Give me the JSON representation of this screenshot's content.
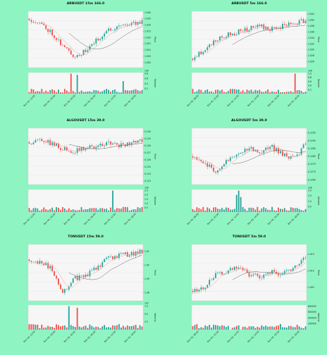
{
  "colors": {
    "up": "#26a69a",
    "down": "#ef5350",
    "ma_fast": "#e8a0a0",
    "ma_slow": "#555555",
    "panel": "#f6f6f6",
    "background": "#8ef5c2"
  },
  "chart_data": [
    {
      "id": "arbusdt-15m",
      "type": "candlestick",
      "title": "ARBUSDT 15m 166.0",
      "ylabel": "Price",
      "vlabel": "Volume",
      "vol_scale_label": "1e6",
      "ylim": [
        0.996,
        1.041
      ],
      "y_ticks": [
        "1.040",
        "1.035",
        "1.030",
        "1.025",
        "1.020",
        "1.015",
        "1.010",
        "1.005",
        "1.000"
      ],
      "vol_ticks": [
        "0.8",
        "0.6",
        "0.4",
        "0.2"
      ],
      "x_ticks": [
        "Nov 04, 12:00",
        "Nov 04, 18:00",
        "Nov 05, 00:00",
        "Nov 05, 06:00",
        "Nov 05, 12:00",
        "Nov 05, 18:00"
      ],
      "path": [
        1.035,
        1.031,
        1.024,
        1.013,
        1.005,
        1.009,
        1.018,
        1.026,
        1.03,
        1.031,
        1.033
      ],
      "n": 55,
      "vol_spikes": [
        [
          20,
          0.9
        ],
        [
          23,
          0.75
        ],
        [
          45,
          0.5
        ]
      ],
      "seed": 11
    },
    {
      "id": "arbusdt-5m",
      "type": "candlestick",
      "title": "ARBUSDT 5m 166.0",
      "ylabel": "Price",
      "vlabel": "Volume",
      "vol_scale_label": "1e6",
      "ylim": [
        1.024,
        1.043
      ],
      "y_ticks": [
        "1.042",
        "1.040",
        "1.038",
        "1.036",
        "1.034",
        "1.032",
        "1.030",
        "1.028",
        "1.026"
      ],
      "vol_ticks": [
        "1.0",
        "0.8",
        "0.6",
        "0.4",
        "0.2"
      ],
      "x_ticks": [
        "Nov 05, 08:00",
        "Nov 05, 10:00",
        "Nov 05, 12:00",
        "Nov 05, 14:00",
        "Nov 05, 16:00",
        "Nov 05, 18:00"
      ],
      "path": [
        1.027,
        1.03,
        1.033,
        1.035,
        1.036,
        1.037,
        1.038,
        1.037,
        1.038,
        1.039,
        1.04
      ],
      "n": 55,
      "vol_spikes": [
        [
          49,
          1.0
        ]
      ],
      "seed": 23
    },
    {
      "id": "algousdt-15m",
      "type": "candlestick",
      "title": "ALGOUSDT 15m 39.0",
      "ylabel": "Price",
      "vlabel": "Volume",
      "vol_scale_label": "1e6",
      "ylim": [
        0.1225,
        0.1305
      ],
      "y_ticks": [
        "0.130",
        "0.129",
        "0.128",
        "0.127",
        "0.126",
        "0.125",
        "0.124",
        "0.123"
      ],
      "vol_ticks": [
        "2.5",
        "2.0",
        "1.5",
        "1.0",
        "0.5"
      ],
      "x_ticks": [
        "Nov 04, 12:00",
        "Nov 04, 18:00",
        "Nov 05, 00:00",
        "Nov 05, 06:00",
        "Nov 05, 12:00",
        "Nov 05, 18:00"
      ],
      "path": [
        0.1285,
        0.1288,
        0.1283,
        0.1275,
        0.1272,
        0.1277,
        0.128,
        0.1283,
        0.1281,
        0.1284,
        0.1286
      ],
      "n": 55,
      "vol_spikes": [
        [
          40,
          2.6
        ]
      ],
      "seed": 37
    },
    {
      "id": "algousdt-5m",
      "type": "candlestick",
      "title": "ALGOUSDT 5m 39.0",
      "ylabel": "Price",
      "vlabel": "Volume",
      "vol_scale_label": "1e6",
      "ylim": [
        0.1262,
        0.1298
      ],
      "y_ticks": [
        "0.1295",
        "0.1290",
        "0.1285",
        "0.1280",
        "0.1275",
        "0.1270",
        "0.1265"
      ],
      "vol_ticks": [
        "2.0",
        "1.5",
        "1.0",
        "0.5"
      ],
      "x_ticks": [
        "Nov 05, 08:00",
        "Nov 05, 10:00",
        "Nov 05, 12:00",
        "Nov 05, 14:00",
        "Nov 05, 16:00",
        "Nov 05, 18:00"
      ],
      "path": [
        0.128,
        0.1276,
        0.127,
        0.1278,
        0.1282,
        0.1285,
        0.1283,
        0.1286,
        0.1281,
        0.1278,
        0.1288
      ],
      "n": 55,
      "vol_spikes": [
        [
          21,
          1.6
        ],
        [
          22,
          2.1
        ],
        [
          23,
          1.4
        ]
      ],
      "seed": 51
    },
    {
      "id": "tonusdt-15m",
      "type": "candlestick",
      "title": "TONUSDT 15m 59.0",
      "ylabel": "Price",
      "vlabel": "Volume",
      "vol_scale_label": "1e5",
      "ylim": [
        1.374,
        1.415
      ],
      "y_ticks": [
        "1.41",
        "1.40",
        "1.39",
        "1.38"
      ],
      "vol_ticks": [
        "7.5",
        "5.0",
        "2.5"
      ],
      "x_ticks": [
        "Nov 04, 12:00",
        "Nov 04, 18:00",
        "Nov 05, 00:00",
        "Nov 05, 06:00",
        "Nov 05, 12:00",
        "Nov 05, 18:00"
      ],
      "path": [
        1.404,
        1.402,
        1.398,
        1.38,
        1.39,
        1.392,
        1.398,
        1.405,
        1.407,
        1.408,
        1.41
      ],
      "n": 55,
      "vol_spikes": [
        [
          19,
          8.0
        ],
        [
          23,
          7.0
        ]
      ],
      "seed": 67
    },
    {
      "id": "tonusdt-5m",
      "type": "candlestick",
      "title": "TONUSDT 5m 59.0",
      "ylabel": "Price",
      "vlabel": "Volume",
      "vol_scale_label": "",
      "ylim": [
        1.401,
        1.418
      ],
      "y_ticks": [
        "1.415",
        "1.410",
        "1.405"
      ],
      "vol_ticks": [
        "800000",
        "600000",
        "400000",
        "200000"
      ],
      "x_ticks": [
        "Nov 05, 08:00",
        "Nov 05, 10:00",
        "Nov 05, 12:00",
        "Nov 05, 14:00",
        "Nov 05, 16:00",
        "Nov 05, 18:00"
      ],
      "path": [
        1.404,
        1.405,
        1.409,
        1.41,
        1.411,
        1.409,
        1.408,
        1.41,
        1.409,
        1.411,
        1.414
      ],
      "n": 55,
      "vol_spikes": [
        [
          18,
          0.85
        ],
        [
          23,
          0.8
        ]
      ],
      "seed": 83
    }
  ]
}
